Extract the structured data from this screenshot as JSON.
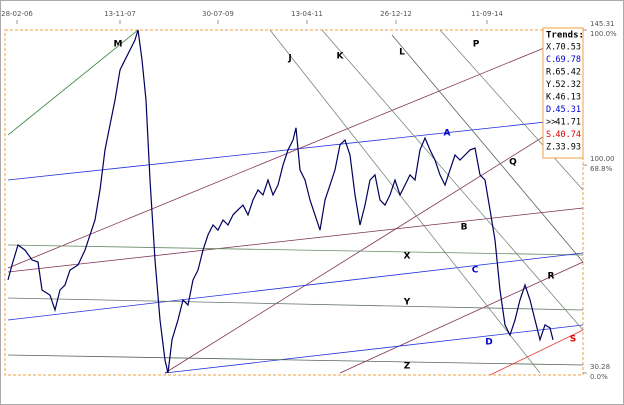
{
  "chart_data": {
    "type": "line",
    "x": [
      3,
      7,
      13,
      20,
      27,
      33,
      37,
      45,
      50,
      55,
      60,
      65,
      73,
      80,
      85,
      90,
      95,
      100,
      105,
      110,
      115,
      120,
      125,
      130,
      133,
      137,
      141,
      145,
      150,
      155,
      160,
      163,
      167,
      173,
      178,
      183,
      188,
      193,
      198,
      203,
      208,
      213,
      218,
      223,
      228,
      233,
      238,
      243,
      248,
      253,
      258,
      263,
      268,
      273,
      278,
      283,
      288,
      291,
      295,
      300,
      305,
      310,
      315,
      320,
      325,
      330,
      335,
      340,
      345,
      350,
      355,
      360,
      365,
      370,
      375,
      380,
      385,
      390,
      395,
      400,
      405,
      410,
      415,
      420,
      425,
      430,
      435,
      440,
      445,
      450,
      455,
      460,
      465,
      470,
      475,
      480,
      485,
      490,
      495,
      500,
      505,
      510,
      515,
      520,
      525,
      530,
      535,
      540,
      545,
      548
    ],
    "series": [
      {
        "color": "#000060",
        "values": [
          61.5,
          66.5,
          73.2,
          71.5,
          68.2,
          67.5,
          58.1,
          56.4,
          51.4,
          58.1,
          59.8,
          64.8,
          66.5,
          71.5,
          76.6,
          81.6,
          91.7,
          105.1,
          113.5,
          121.8,
          131.9,
          135.3,
          138.6,
          142.0,
          145.3,
          135.3,
          121.8,
          95.0,
          68.2,
          48.1,
          34.6,
          30.3,
          41.4,
          48.1,
          54.8,
          53.1,
          61.5,
          64.8,
          71.5,
          76.6,
          79.9,
          78.2,
          81.6,
          79.9,
          83.3,
          85.0,
          86.6,
          83.3,
          88.3,
          91.7,
          90.0,
          95.0,
          90.0,
          93.3,
          100.0,
          105.1,
          108.4,
          112.5,
          98.4,
          95.0,
          88.3,
          83.3,
          78.2,
          88.3,
          93.3,
          98.4,
          106.8,
          108.4,
          103.4,
          90.0,
          79.9,
          86.6,
          95.0,
          96.7,
          88.3,
          86.6,
          90.0,
          95.0,
          90.0,
          93.3,
          96.7,
          95.0,
          105.1,
          109.1,
          105.1,
          101.7,
          96.7,
          93.3,
          98.4,
          103.4,
          101.7,
          103.4,
          105.1,
          105.7,
          96.7,
          95.0,
          85.0,
          74.9,
          58.1,
          46.4,
          43.0,
          48.1,
          54.8,
          59.8,
          54.8,
          48.1,
          41.4,
          46.4,
          45.4,
          41.4
        ]
      }
    ],
    "xlim": [
      0,
      578
    ],
    "xticks": [
      {
        "value": 12,
        "label": "28-02-06"
      },
      {
        "value": 115,
        "label": "13-11-07"
      },
      {
        "value": 213,
        "label": "30-07-09"
      },
      {
        "value": 302,
        "label": "13-04-11"
      },
      {
        "value": 391,
        "label": "26-12-12"
      },
      {
        "value": 482,
        "label": "11-09-14"
      }
    ],
    "ylim": [
      30.28,
      145.31
    ],
    "yticks": [
      {
        "value": 145.31,
        "label": "145.31",
        "pct_label": "100.0%"
      },
      {
        "value": 100,
        "label": "100.00",
        "pct_label": "68.8%"
      },
      {
        "value": 30.28,
        "label": "30.28",
        "pct_label": "0.0%"
      }
    ],
    "annotations": [
      {
        "text": "M",
        "color": "#000000"
      },
      {
        "text": "J",
        "color": "#000000"
      },
      {
        "text": "K",
        "color": "#000000"
      },
      {
        "text": "L",
        "color": "#000000"
      },
      {
        "text": "P",
        "color": "#000000"
      },
      {
        "text": "A",
        "color": "#0000cc"
      },
      {
        "text": "Q",
        "color": "#000000"
      },
      {
        "text": "B",
        "color": "#000000"
      },
      {
        "text": "X",
        "color": "#000000"
      },
      {
        "text": "C",
        "color": "#0000cc"
      },
      {
        "text": "R",
        "color": "#000000"
      },
      {
        "text": "Y",
        "color": "#000000"
      },
      {
        "text": "D",
        "color": "#0000cc"
      },
      {
        "text": "S",
        "color": "#dd0000"
      },
      {
        "text": "Z",
        "color": "#000000"
      }
    ],
    "trends_title": "Trends:",
    "trends": [
      {
        "label": "X.",
        "value": 70.53,
        "color": "#000000"
      },
      {
        "label": "C.",
        "value": 69.78,
        "color": "#0000cc"
      },
      {
        "label": "R.",
        "value": 65.42,
        "color": "#000000"
      },
      {
        "label": "Y.",
        "value": 52.32,
        "color": "#000000"
      },
      {
        "label": "K.",
        "value": 46.13,
        "color": "#000000"
      },
      {
        "label": "D.",
        "value": 45.31,
        "color": "#0000cc"
      },
      {
        "label": ">>",
        "value": 41.71,
        "color": "#000000"
      },
      {
        "label": "S.",
        "value": 40.74,
        "color": "#dd0000"
      },
      {
        "label": "Z.",
        "value": 33.93,
        "color": "#000000"
      }
    ]
  }
}
